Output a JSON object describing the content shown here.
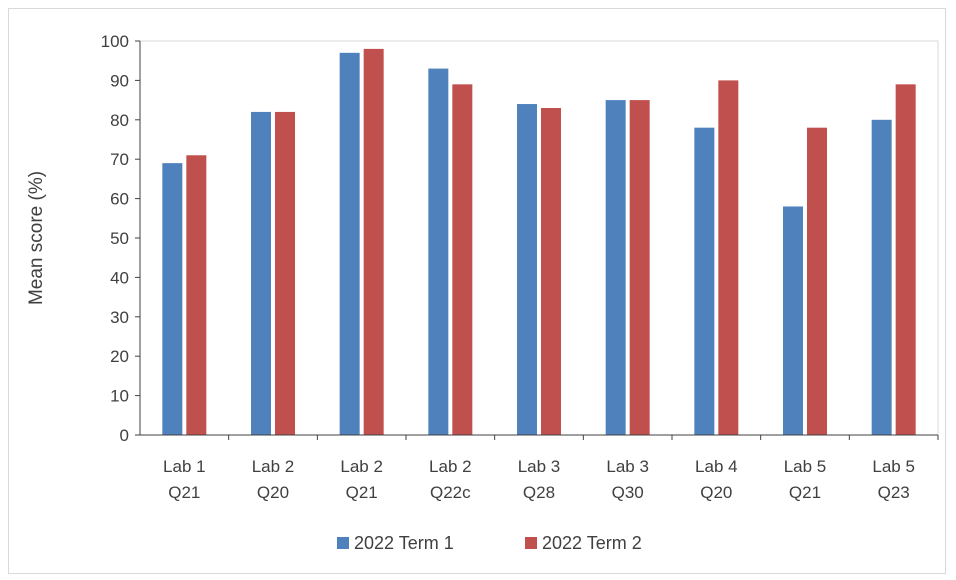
{
  "chart_data": {
    "type": "bar",
    "title": "",
    "xlabel": "",
    "ylabel": "Mean score (%)",
    "ylim": [
      0,
      100
    ],
    "yticks": [
      0,
      10,
      20,
      30,
      40,
      50,
      60,
      70,
      80,
      90,
      100
    ],
    "categories": [
      [
        "Lab 1",
        "Q21"
      ],
      [
        "Lab 2",
        "Q20"
      ],
      [
        "Lab 2",
        "Q21"
      ],
      [
        "Lab 2",
        "Q22c"
      ],
      [
        "Lab 3",
        "Q28"
      ],
      [
        "Lab 3",
        "Q30"
      ],
      [
        "Lab 4",
        "Q20"
      ],
      [
        "Lab 5",
        "Q21"
      ],
      [
        "Lab 5",
        "Q23"
      ]
    ],
    "series": [
      {
        "name": "2022 Term 1",
        "color": "#4f81bd",
        "values": [
          69,
          82,
          97,
          93,
          84,
          85,
          78,
          58,
          80
        ]
      },
      {
        "name": "2022 Term 2",
        "color": "#c0504d",
        "values": [
          71,
          82,
          98,
          89,
          83,
          85,
          90,
          78,
          89
        ]
      }
    ],
    "grid": false,
    "legend_position": "bottom"
  }
}
